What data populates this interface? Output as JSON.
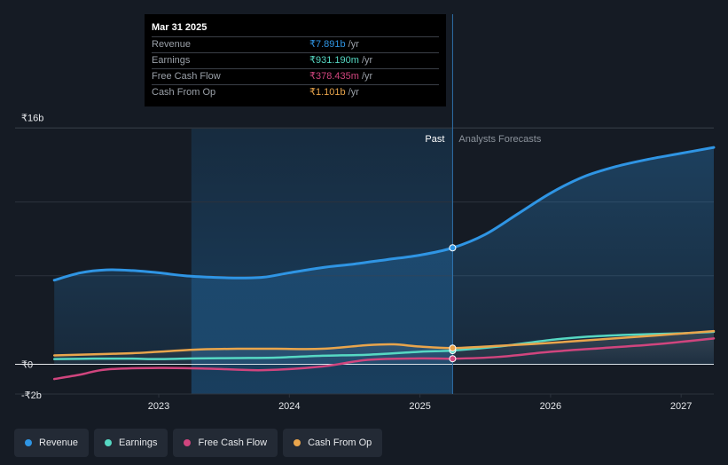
{
  "tooltip": {
    "date": "Mar 31 2025",
    "rows": [
      {
        "label": "Revenue",
        "value": "₹7.891b",
        "unit": "/yr",
        "color": "#2f95e4"
      },
      {
        "label": "Earnings",
        "value": "₹931.190m",
        "unit": "/yr",
        "color": "#56d8c3"
      },
      {
        "label": "Free Cash Flow",
        "value": "₹378.435m",
        "unit": "/yr",
        "color": "#d0457e"
      },
      {
        "label": "Cash From Op",
        "value": "₹1.101b",
        "unit": "/yr",
        "color": "#e9a54c"
      }
    ]
  },
  "legend": [
    {
      "label": "Revenue",
      "color": "#2f95e4"
    },
    {
      "label": "Earnings",
      "color": "#56d8c3"
    },
    {
      "label": "Free Cash Flow",
      "color": "#d0457e"
    },
    {
      "label": "Cash From Op",
      "color": "#e9a54c"
    }
  ],
  "chart_data": {
    "type": "line",
    "title": "",
    "xlabel": "",
    "ylabel": "",
    "y_tick_labels": [
      "₹16b",
      "₹0",
      "-₹2b"
    ],
    "y_ticks": [
      16,
      0,
      -2
    ],
    "x_tick_labels": [
      "2023",
      "2024",
      "2025",
      "2026",
      "2027"
    ],
    "x_ticks": [
      2023,
      2024,
      2025,
      2026,
      2027
    ],
    "xlim": [
      2021.9,
      2027.25
    ],
    "ylim": [
      -2,
      16
    ],
    "past_label": "Past",
    "forecast_label": "Analysts Forecasts",
    "past_region": [
      2023.25,
      2025.25
    ],
    "divider_x": 2025.25,
    "series": [
      {
        "name": "Revenue",
        "color": "#2f95e4",
        "x": [
          2022.2,
          2022.4,
          2022.6,
          2022.8,
          2023.0,
          2023.2,
          2023.4,
          2023.6,
          2023.8,
          2024.0,
          2024.25,
          2024.5,
          2024.75,
          2025.0,
          2025.25,
          2025.5,
          2025.75,
          2026.0,
          2026.25,
          2026.5,
          2026.75,
          2027.0,
          2027.25
        ],
        "values": [
          5.7,
          6.2,
          6.4,
          6.35,
          6.2,
          6.0,
          5.9,
          5.85,
          5.9,
          6.2,
          6.55,
          6.8,
          7.1,
          7.4,
          7.891,
          8.8,
          10.2,
          11.6,
          12.7,
          13.4,
          13.9,
          14.3,
          14.7
        ]
      },
      {
        "name": "Earnings",
        "color": "#56d8c3",
        "x": [
          2022.2,
          2022.5,
          2022.8,
          2023.0,
          2023.3,
          2023.6,
          2023.9,
          2024.25,
          2024.6,
          2025.0,
          2025.25,
          2025.6,
          2026.0,
          2026.25,
          2026.6,
          2027.0,
          2027.25
        ],
        "values": [
          0.35,
          0.38,
          0.38,
          0.35,
          0.4,
          0.42,
          0.45,
          0.58,
          0.65,
          0.85,
          0.931,
          1.2,
          1.65,
          1.85,
          2.0,
          2.1,
          2.2
        ]
      },
      {
        "name": "Free Cash Flow",
        "color": "#d0457e",
        "x": [
          2022.2,
          2022.4,
          2022.6,
          2023.0,
          2023.4,
          2023.8,
          2024.25,
          2024.6,
          2025.0,
          2025.25,
          2025.6,
          2026.0,
          2026.4,
          2026.8,
          2027.25
        ],
        "values": [
          -1.0,
          -0.7,
          -0.35,
          -0.25,
          -0.3,
          -0.4,
          -0.15,
          0.3,
          0.4,
          0.378,
          0.5,
          0.85,
          1.1,
          1.35,
          1.75
        ]
      },
      {
        "name": "Cash From Op",
        "color": "#e9a54c",
        "x": [
          2022.2,
          2022.6,
          2022.8,
          2023.0,
          2023.3,
          2023.6,
          2023.9,
          2024.25,
          2024.6,
          2024.8,
          2025.0,
          2025.25,
          2025.6,
          2026.0,
          2026.4,
          2026.8,
          2027.25
        ],
        "values": [
          0.6,
          0.7,
          0.75,
          0.85,
          1.0,
          1.05,
          1.05,
          1.05,
          1.3,
          1.35,
          1.2,
          1.101,
          1.25,
          1.45,
          1.7,
          1.95,
          2.25
        ]
      }
    ]
  }
}
